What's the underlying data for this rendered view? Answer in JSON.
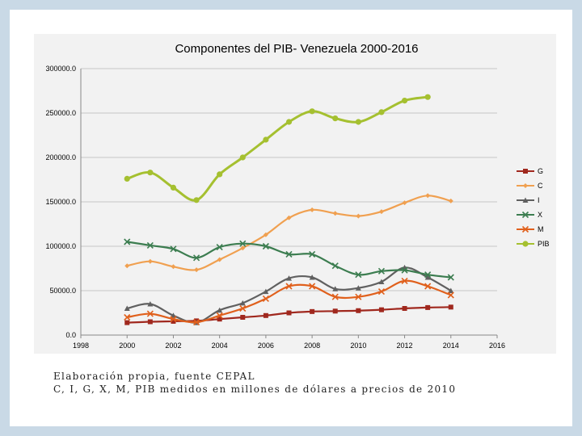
{
  "caption": {
    "line1": "Elaboración propia, fuente CEPAL",
    "line2": "C, I, G, X, M, PIB medidos en millones de dólares a precios de 2010"
  },
  "chart_data": {
    "type": "line",
    "title": "Componentes del PIB- Venezuela 2000-2016",
    "xlabel": "",
    "ylabel": "",
    "xlim": [
      1998,
      2016
    ],
    "ylim": [
      0,
      300000
    ],
    "x_ticks": [
      "1998",
      "2000",
      "2002",
      "2004",
      "2006",
      "2008",
      "2010",
      "2012",
      "2014",
      "2016"
    ],
    "y_ticks": [
      "0.0",
      "50000.0",
      "100000.0",
      "150000.0",
      "200000.0",
      "250000.0",
      "300000.0"
    ],
    "grid": true,
    "legend_position": "right",
    "series": [
      {
        "name": "G",
        "color": "#a0281e",
        "marker": "square",
        "x": [
          2000,
          2001,
          2002,
          2003,
          2004,
          2005,
          2006,
          2007,
          2008,
          2009,
          2010,
          2011,
          2012,
          2013,
          2014
        ],
        "values": [
          14000,
          15000,
          15500,
          16000,
          18000,
          20000,
          22000,
          25000,
          26500,
          27000,
          27500,
          28500,
          30000,
          31000,
          31500
        ]
      },
      {
        "name": "C",
        "color": "#f0a050",
        "marker": "diamond",
        "x": [
          2000,
          2001,
          2002,
          2003,
          2004,
          2005,
          2006,
          2007,
          2008,
          2009,
          2010,
          2011,
          2012,
          2013,
          2014
        ],
        "values": [
          78000,
          83000,
          77000,
          73500,
          85000,
          98000,
          113000,
          132000,
          141000,
          137000,
          134000,
          139000,
          149000,
          157000,
          151000
        ]
      },
      {
        "name": "I",
        "color": "#606060",
        "marker": "triangle",
        "x": [
          2000,
          2001,
          2002,
          2003,
          2004,
          2005,
          2006,
          2007,
          2008,
          2009,
          2010,
          2011,
          2012,
          2013,
          2014
        ],
        "values": [
          30000,
          35000,
          22000,
          14000,
          28000,
          36000,
          49000,
          64000,
          65000,
          52000,
          53000,
          60000,
          76000,
          65000,
          50000
        ]
      },
      {
        "name": "X",
        "color": "#3c7d50",
        "marker": "x",
        "x": [
          2000,
          2001,
          2002,
          2003,
          2004,
          2005,
          2006,
          2007,
          2008,
          2009,
          2010,
          2011,
          2012,
          2013,
          2014
        ],
        "values": [
          105000,
          101000,
          97000,
          87000,
          99000,
          103000,
          100000,
          91000,
          91000,
          78000,
          68000,
          72000,
          73000,
          68000,
          65000
        ]
      },
      {
        "name": "M",
        "color": "#e0601c",
        "marker": "x",
        "x": [
          2000,
          2001,
          2002,
          2003,
          2004,
          2005,
          2006,
          2007,
          2008,
          2009,
          2010,
          2011,
          2012,
          2013,
          2014
        ],
        "values": [
          20000,
          24000,
          18000,
          14500,
          22000,
          30000,
          41000,
          55000,
          55000,
          43000,
          43000,
          49000,
          61000,
          55000,
          45000
        ]
      },
      {
        "name": "PIB",
        "color": "#a5c030",
        "marker": "circle",
        "x": [
          2000,
          2001,
          2002,
          2003,
          2004,
          2005,
          2006,
          2007,
          2008,
          2009,
          2010,
          2011,
          2012,
          2013
        ],
        "values": [
          176000,
          183000,
          166000,
          152000,
          181000,
          200000,
          220000,
          240000,
          252000,
          244000,
          240000,
          251000,
          264000,
          268000
        ]
      }
    ]
  }
}
